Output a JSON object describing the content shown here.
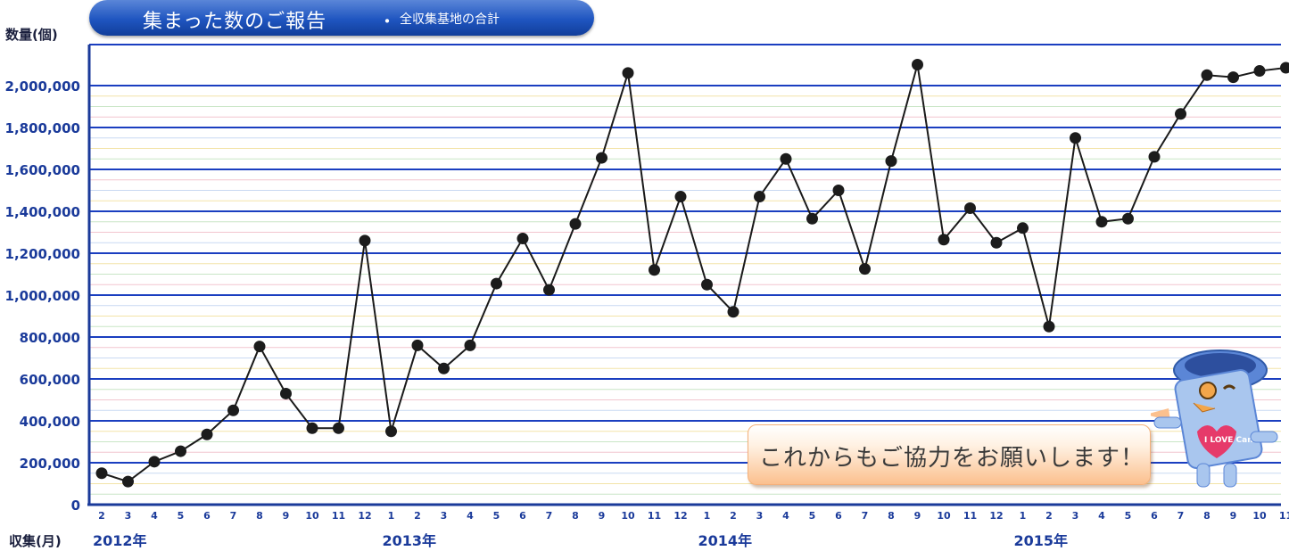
{
  "header": {
    "title_main": "集まった数のご報告",
    "title_dot": "・",
    "title_sub": "全収集基地の合計"
  },
  "axis_unit_y": "数量(個)",
  "axis_unit_x": "収集(月)",
  "callout": {
    "text": "これからもご協力をお願いします！"
  },
  "mascot": {
    "icon": "can-mascot-icon",
    "badge_text": "I LOVE Can."
  },
  "colors": {
    "title_bg": "#1f55c0",
    "grid_major": "#1a3ec0",
    "axis": "#1a3a9a",
    "line": "#1a1a1a",
    "callout_bg": "#fbc08e"
  },
  "chart_data": {
    "type": "line",
    "title": "集まった数のご報告 ・ 全収集基地の合計",
    "ylabel": "数量(個)",
    "xlabel": "収集(月)",
    "ylim": [
      0,
      2000000
    ],
    "y_ticks": [
      "0",
      "200,000",
      "400,000",
      "600,000",
      "800,000",
      "1,000,000",
      "1,200,000",
      "1,400,000",
      "1,600,000",
      "1,800,000",
      "2,000,000"
    ],
    "grid": true,
    "years": [
      {
        "label": "2012年",
        "start_index": 0
      },
      {
        "label": "2013年",
        "start_index": 11
      },
      {
        "label": "2014年",
        "start_index": 23
      },
      {
        "label": "2015年",
        "start_index": 35
      }
    ],
    "categories": [
      "2",
      "3",
      "4",
      "5",
      "6",
      "7",
      "8",
      "9",
      "10",
      "11",
      "12",
      "1",
      "2",
      "3",
      "4",
      "5",
      "6",
      "7",
      "8",
      "9",
      "10",
      "11",
      "12",
      "1",
      "2",
      "3",
      "4",
      "5",
      "6",
      "7",
      "8",
      "9",
      "10",
      "11",
      "12",
      "1",
      "2",
      "3",
      "4",
      "5",
      "6",
      "7",
      "8",
      "9",
      "10",
      "11"
    ],
    "series": [
      {
        "values": [
          150000,
          110000,
          205000,
          255000,
          335000,
          450000,
          755000,
          530000,
          365000,
          365000,
          1260000,
          350000,
          760000,
          650000,
          760000,
          1055000,
          1270000,
          1025000,
          1340000,
          1655000,
          2060000,
          1120000,
          1470000,
          1050000,
          920000,
          1470000,
          1650000,
          1365000,
          1500000,
          1125000,
          1640000,
          2100000,
          1265000,
          1415000,
          1250000,
          1320000,
          850000,
          1750000,
          1350000,
          1365000,
          1660000,
          1865000,
          2050000,
          2040000,
          2070000,
          2085000
        ]
      }
    ]
  }
}
